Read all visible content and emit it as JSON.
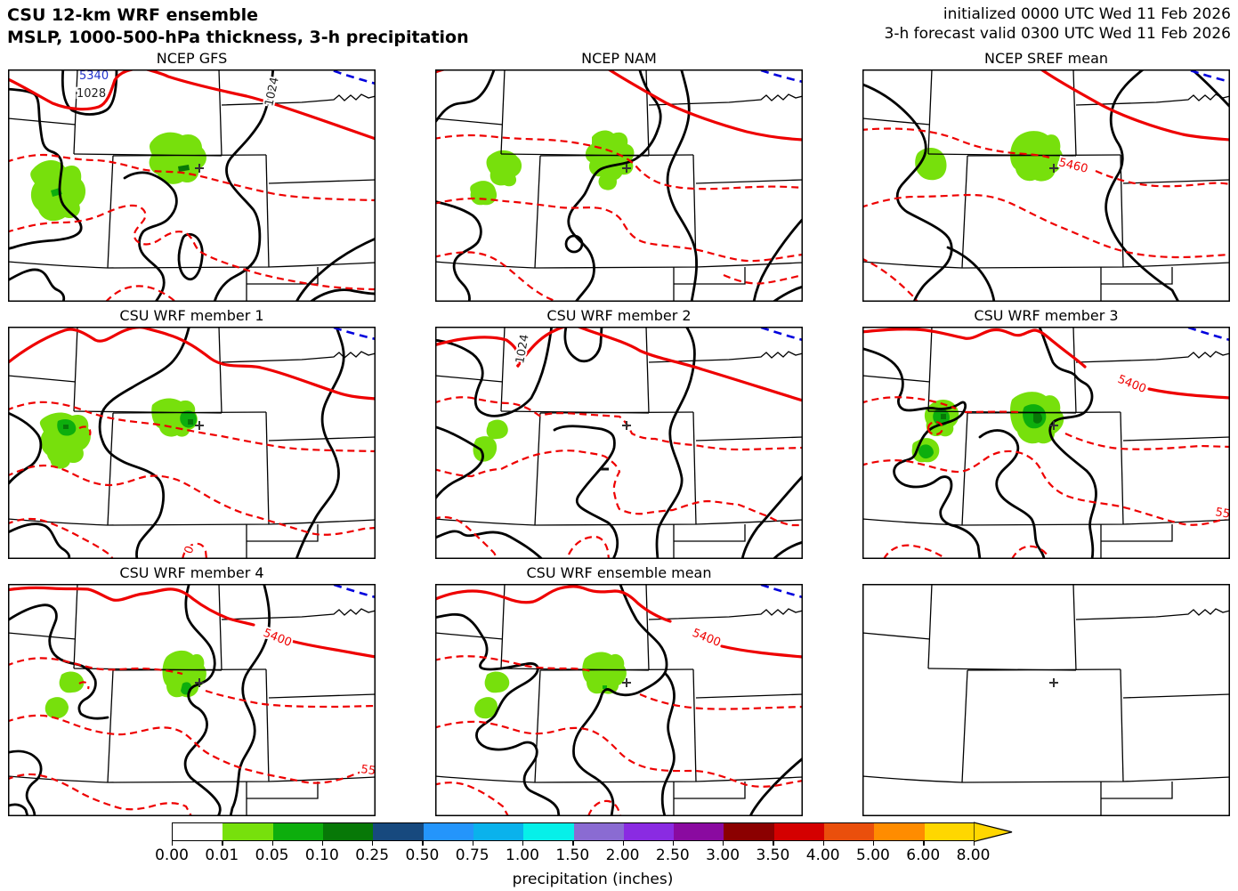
{
  "header": {
    "title_line1": "CSU 12-km WRF ensemble",
    "title_line2": "MSLP, 1000-500-hPa thickness, 3-h precipitation",
    "init_line": "initialized 0000 UTC Wed 11 Feb 2026",
    "valid_line": "3-h forecast valid 0300 UTC Wed 11 Feb 2026"
  },
  "panels": [
    {
      "id": "ncep-gfs",
      "title": "NCEP GFS",
      "contour_labels": [
        {
          "text": "5340",
          "color": "#2233cc"
        },
        {
          "text": "1028",
          "color": "#222222"
        },
        {
          "text": "1024",
          "color": "#222222"
        }
      ]
    },
    {
      "id": "ncep-nam",
      "title": "NCEP NAM",
      "contour_labels": []
    },
    {
      "id": "ncep-sref-mean",
      "title": "NCEP SREF mean",
      "contour_labels": [
        {
          "text": "5460",
          "color": "#ee0000"
        }
      ]
    },
    {
      "id": "csu-wrf-member-1",
      "title": "CSU WRF member 1",
      "contour_labels": [
        {
          "text": "0",
          "color": "#ee0000"
        }
      ]
    },
    {
      "id": "csu-wrf-member-2",
      "title": "CSU WRF member 2",
      "contour_labels": [
        {
          "text": "1024",
          "color": "#222222"
        }
      ]
    },
    {
      "id": "csu-wrf-member-3",
      "title": "CSU WRF member 3",
      "contour_labels": [
        {
          "text": "5400",
          "color": "#ee0000"
        },
        {
          "text": "55",
          "color": "#ee0000"
        }
      ]
    },
    {
      "id": "csu-wrf-member-4",
      "title": "CSU WRF member 4",
      "contour_labels": [
        {
          "text": "5400",
          "color": "#ee0000"
        },
        {
          "text": "55",
          "color": "#ee0000"
        }
      ]
    },
    {
      "id": "csu-wrf-ensemble-mean",
      "title": "CSU WRF ensemble mean",
      "contour_labels": [
        {
          "text": "5400",
          "color": "#ee0000"
        }
      ]
    },
    {
      "id": "blank",
      "title": "",
      "contour_labels": []
    }
  ],
  "chart_data": {
    "type": "heatmap",
    "description": "3x3 grid of MSLP / 1000-500-hPa thickness / 3-h precipitation forecast maps sharing one precipitation colorbar",
    "colorbar": {
      "label": "precipitation (inches)",
      "levels": [
        0.0,
        0.01,
        0.05,
        0.1,
        0.25,
        0.5,
        0.75,
        1.0,
        1.5,
        2.0,
        2.5,
        3.0,
        3.5,
        4.0,
        5.0,
        6.0,
        8.0
      ],
      "tick_labels": [
        "0.00",
        "0.01",
        "0.05",
        "0.10",
        "0.25",
        "0.50",
        "0.75",
        "1.00",
        "1.50",
        "2.00",
        "2.50",
        "3.00",
        "3.50",
        "4.00",
        "5.00",
        "6.00",
        "8.00"
      ],
      "colors": [
        "#ffffff",
        "#77e00c",
        "#0dae0d",
        "#077807",
        "#17497e",
        "#2495fb",
        "#0ab2ec",
        "#06f0e9",
        "#8a6bd2",
        "#8a2be2",
        "#8a0aa0",
        "#8b0000",
        "#d40000",
        "#ea4f0c",
        "#ff8c00",
        "#ffd700"
      ],
      "extend_over_color": "#ffd700",
      "orientation": "horizontal"
    },
    "map_overlays": {
      "mslp_contour_color": "#000000",
      "thickness_contour_color": "#ee0000",
      "thickness_low_contour_color": "#0000dd",
      "precip_light_color": "#77e00c",
      "precip_medium_color": "#0dae0d",
      "precip_dark_color": "#077807",
      "station_marker": "+"
    }
  }
}
